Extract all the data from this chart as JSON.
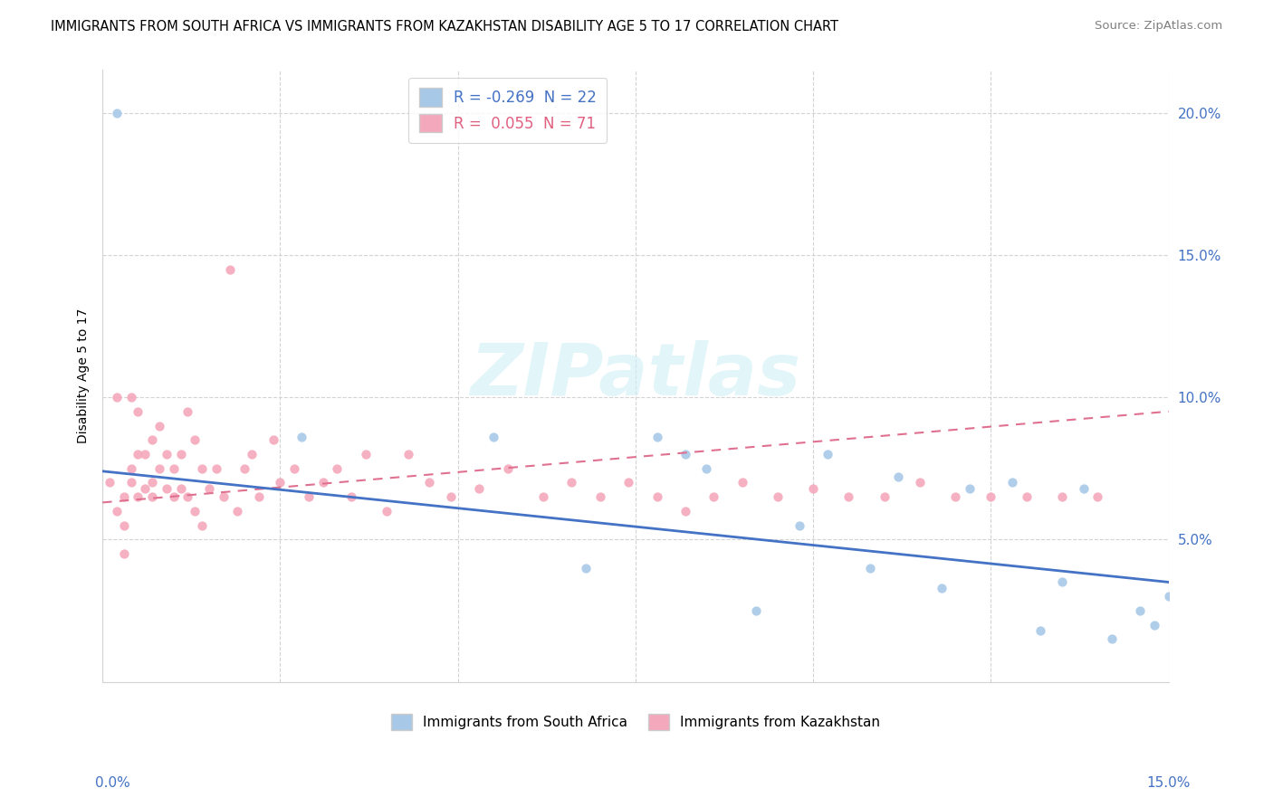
{
  "title": "IMMIGRANTS FROM SOUTH AFRICA VS IMMIGRANTS FROM KAZAKHSTAN DISABILITY AGE 5 TO 17 CORRELATION CHART",
  "source": "Source: ZipAtlas.com",
  "ylabel": "Disability Age 5 to 17",
  "x_lim": [
    0.0,
    0.15
  ],
  "y_lim": [
    0.0,
    0.215
  ],
  "south_africa_color": "#a8c8e8",
  "kazakhstan_color": "#f4a8bc",
  "south_africa_line_color": "#4472c4",
  "kazakhstan_line_color": "#e07090",
  "sa_r": "-0.269",
  "sa_n": "22",
  "kz_r": "0.055",
  "kz_n": "71",
  "sa_x": [
    0.002,
    0.028,
    0.055,
    0.068,
    0.078,
    0.082,
    0.085,
    0.092,
    0.098,
    0.102,
    0.108,
    0.112,
    0.118,
    0.122,
    0.128,
    0.132,
    0.135,
    0.138,
    0.142,
    0.146,
    0.148,
    0.15
  ],
  "sa_y": [
    0.2,
    0.086,
    0.086,
    0.04,
    0.086,
    0.08,
    0.075,
    0.025,
    0.055,
    0.08,
    0.04,
    0.072,
    0.033,
    0.068,
    0.07,
    0.018,
    0.035,
    0.068,
    0.015,
    0.025,
    0.02,
    0.03
  ],
  "kz_x": [
    0.001,
    0.002,
    0.002,
    0.003,
    0.003,
    0.003,
    0.004,
    0.004,
    0.004,
    0.005,
    0.005,
    0.005,
    0.006,
    0.006,
    0.007,
    0.007,
    0.007,
    0.008,
    0.008,
    0.009,
    0.009,
    0.01,
    0.01,
    0.011,
    0.011,
    0.012,
    0.012,
    0.013,
    0.013,
    0.014,
    0.014,
    0.015,
    0.016,
    0.017,
    0.018,
    0.019,
    0.02,
    0.021,
    0.022,
    0.024,
    0.025,
    0.027,
    0.029,
    0.031,
    0.033,
    0.035,
    0.037,
    0.04,
    0.043,
    0.046,
    0.049,
    0.053,
    0.057,
    0.062,
    0.066,
    0.07,
    0.074,
    0.078,
    0.082,
    0.086,
    0.09,
    0.095,
    0.1,
    0.105,
    0.11,
    0.115,
    0.12,
    0.125,
    0.13,
    0.135,
    0.14
  ],
  "kz_y": [
    0.07,
    0.1,
    0.06,
    0.065,
    0.055,
    0.045,
    0.07,
    0.075,
    0.1,
    0.065,
    0.08,
    0.095,
    0.068,
    0.08,
    0.065,
    0.085,
    0.07,
    0.075,
    0.09,
    0.068,
    0.08,
    0.075,
    0.065,
    0.068,
    0.08,
    0.065,
    0.095,
    0.06,
    0.085,
    0.055,
    0.075,
    0.068,
    0.075,
    0.065,
    0.145,
    0.06,
    0.075,
    0.08,
    0.065,
    0.085,
    0.07,
    0.075,
    0.065,
    0.07,
    0.075,
    0.065,
    0.08,
    0.06,
    0.08,
    0.07,
    0.065,
    0.068,
    0.075,
    0.065,
    0.07,
    0.065,
    0.07,
    0.065,
    0.06,
    0.065,
    0.07,
    0.065,
    0.068,
    0.065,
    0.065,
    0.07,
    0.065,
    0.065,
    0.065,
    0.065,
    0.065
  ],
  "sa_line_x0": 0.0,
  "sa_line_y0": 0.074,
  "sa_line_x1": 0.15,
  "sa_line_y1": 0.035,
  "kz_line_x0": 0.0,
  "kz_line_y0": 0.063,
  "kz_line_x1": 0.15,
  "kz_line_y1": 0.095,
  "watermark_text": "ZIPatlas"
}
